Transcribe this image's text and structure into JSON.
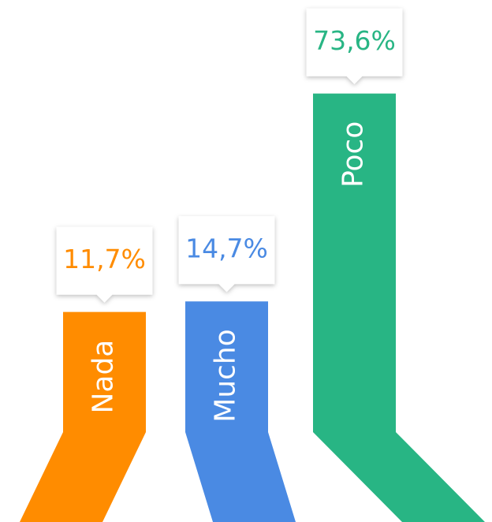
{
  "chart_data": {
    "type": "bar",
    "categories": [
      "Nada",
      "Mucho",
      "Poco"
    ],
    "values": [
      11.7,
      14.7,
      73.6
    ],
    "value_labels": [
      "11,7%",
      "14,7%",
      "73,6%"
    ],
    "colors": [
      "#ff8c00",
      "#4a8ae3",
      "#28b584"
    ]
  }
}
